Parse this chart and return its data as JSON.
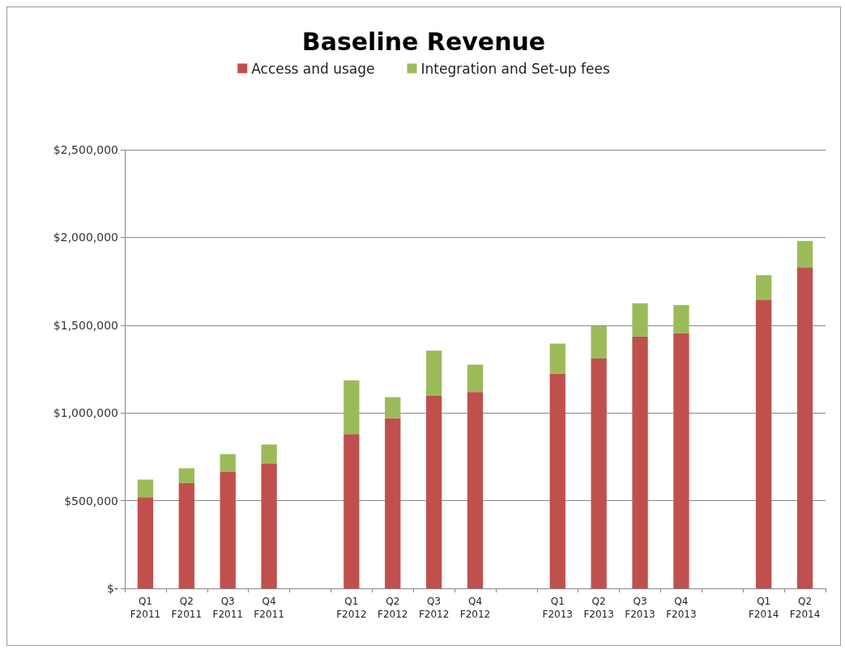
{
  "chart_data": {
    "type": "bar",
    "title": "Baseline Revenue",
    "stacked": true,
    "legend": "top",
    "grid": "y",
    "categories": [
      "Q1\nF2011",
      "Q2\nF2011",
      "Q3\nF2011",
      "Q4\nF2011",
      null,
      "Q1\nF2012",
      "Q2\nF2012",
      "Q3\nF2012",
      "Q4\nF2012",
      null,
      "Q1\nF2013",
      "Q2\nF2013",
      "Q3\nF2013",
      "Q4\nF2013",
      null,
      "Q1\nF2014",
      "Q2\nF2014"
    ],
    "series": [
      {
        "name": "Access and usage",
        "color": "#c0504d",
        "values": [
          520000,
          600000,
          665000,
          710000,
          null,
          880000,
          970000,
          1100000,
          1120000,
          null,
          1225000,
          1310000,
          1435000,
          1455000,
          null,
          1645000,
          1830000
        ]
      },
      {
        "name": "Integration and Set-up fees",
        "color": "#9bbb59",
        "values": [
          100000,
          85000,
          100000,
          110000,
          null,
          305000,
          120000,
          255000,
          155000,
          null,
          170000,
          185000,
          190000,
          160000,
          null,
          140000,
          150000
        ]
      }
    ],
    "ylim": [
      0,
      2500000
    ],
    "yticks": [
      {
        "value": 0,
        "label": "$-"
      },
      {
        "value": 500000,
        "label": "$500,000"
      },
      {
        "value": 1000000,
        "label": "$1,000,000"
      },
      {
        "value": 1500000,
        "label": "$1,500,000"
      },
      {
        "value": 2000000,
        "label": "$2,000,000"
      },
      {
        "value": 2500000,
        "label": "$2,500,000"
      }
    ]
  }
}
